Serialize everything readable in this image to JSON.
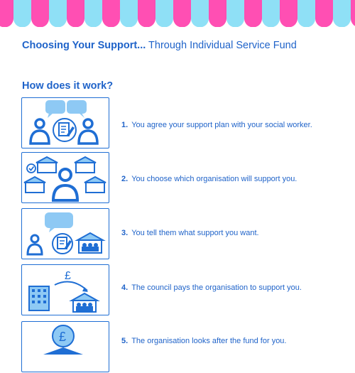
{
  "header": {
    "title_bold": "Choosing Your Support...",
    "title_rest": " Through Individual Service Fund"
  },
  "section": {
    "heading": "How does it work?"
  },
  "steps": [
    {
      "number": "1.",
      "text": "You agree your support plan with your social worker."
    },
    {
      "number": "2.",
      "text": "You choose which organisation will support you."
    },
    {
      "number": "3.",
      "text": "You tell them what support you want."
    },
    {
      "number": "4.",
      "text": "The council pays the organisation to support you."
    },
    {
      "number": "5.",
      "text": "The organisation looks after the fund for you."
    }
  ],
  "illustrations": {
    "currency_symbol": "£",
    "icons": [
      "speech-bubbles-icon",
      "people-icon",
      "plan-document-icon",
      "building-group-icon",
      "checkmark-icon",
      "office-building-icon",
      "money-coin-icon",
      "arrow-icon"
    ]
  },
  "colors": {
    "brand_blue": "#1f6ed4",
    "text_blue": "#1f63c9",
    "light_blue": "#8ec9f4",
    "awning_pink": "#ff4fb3",
    "awning_cyan": "#8fe0f6"
  }
}
